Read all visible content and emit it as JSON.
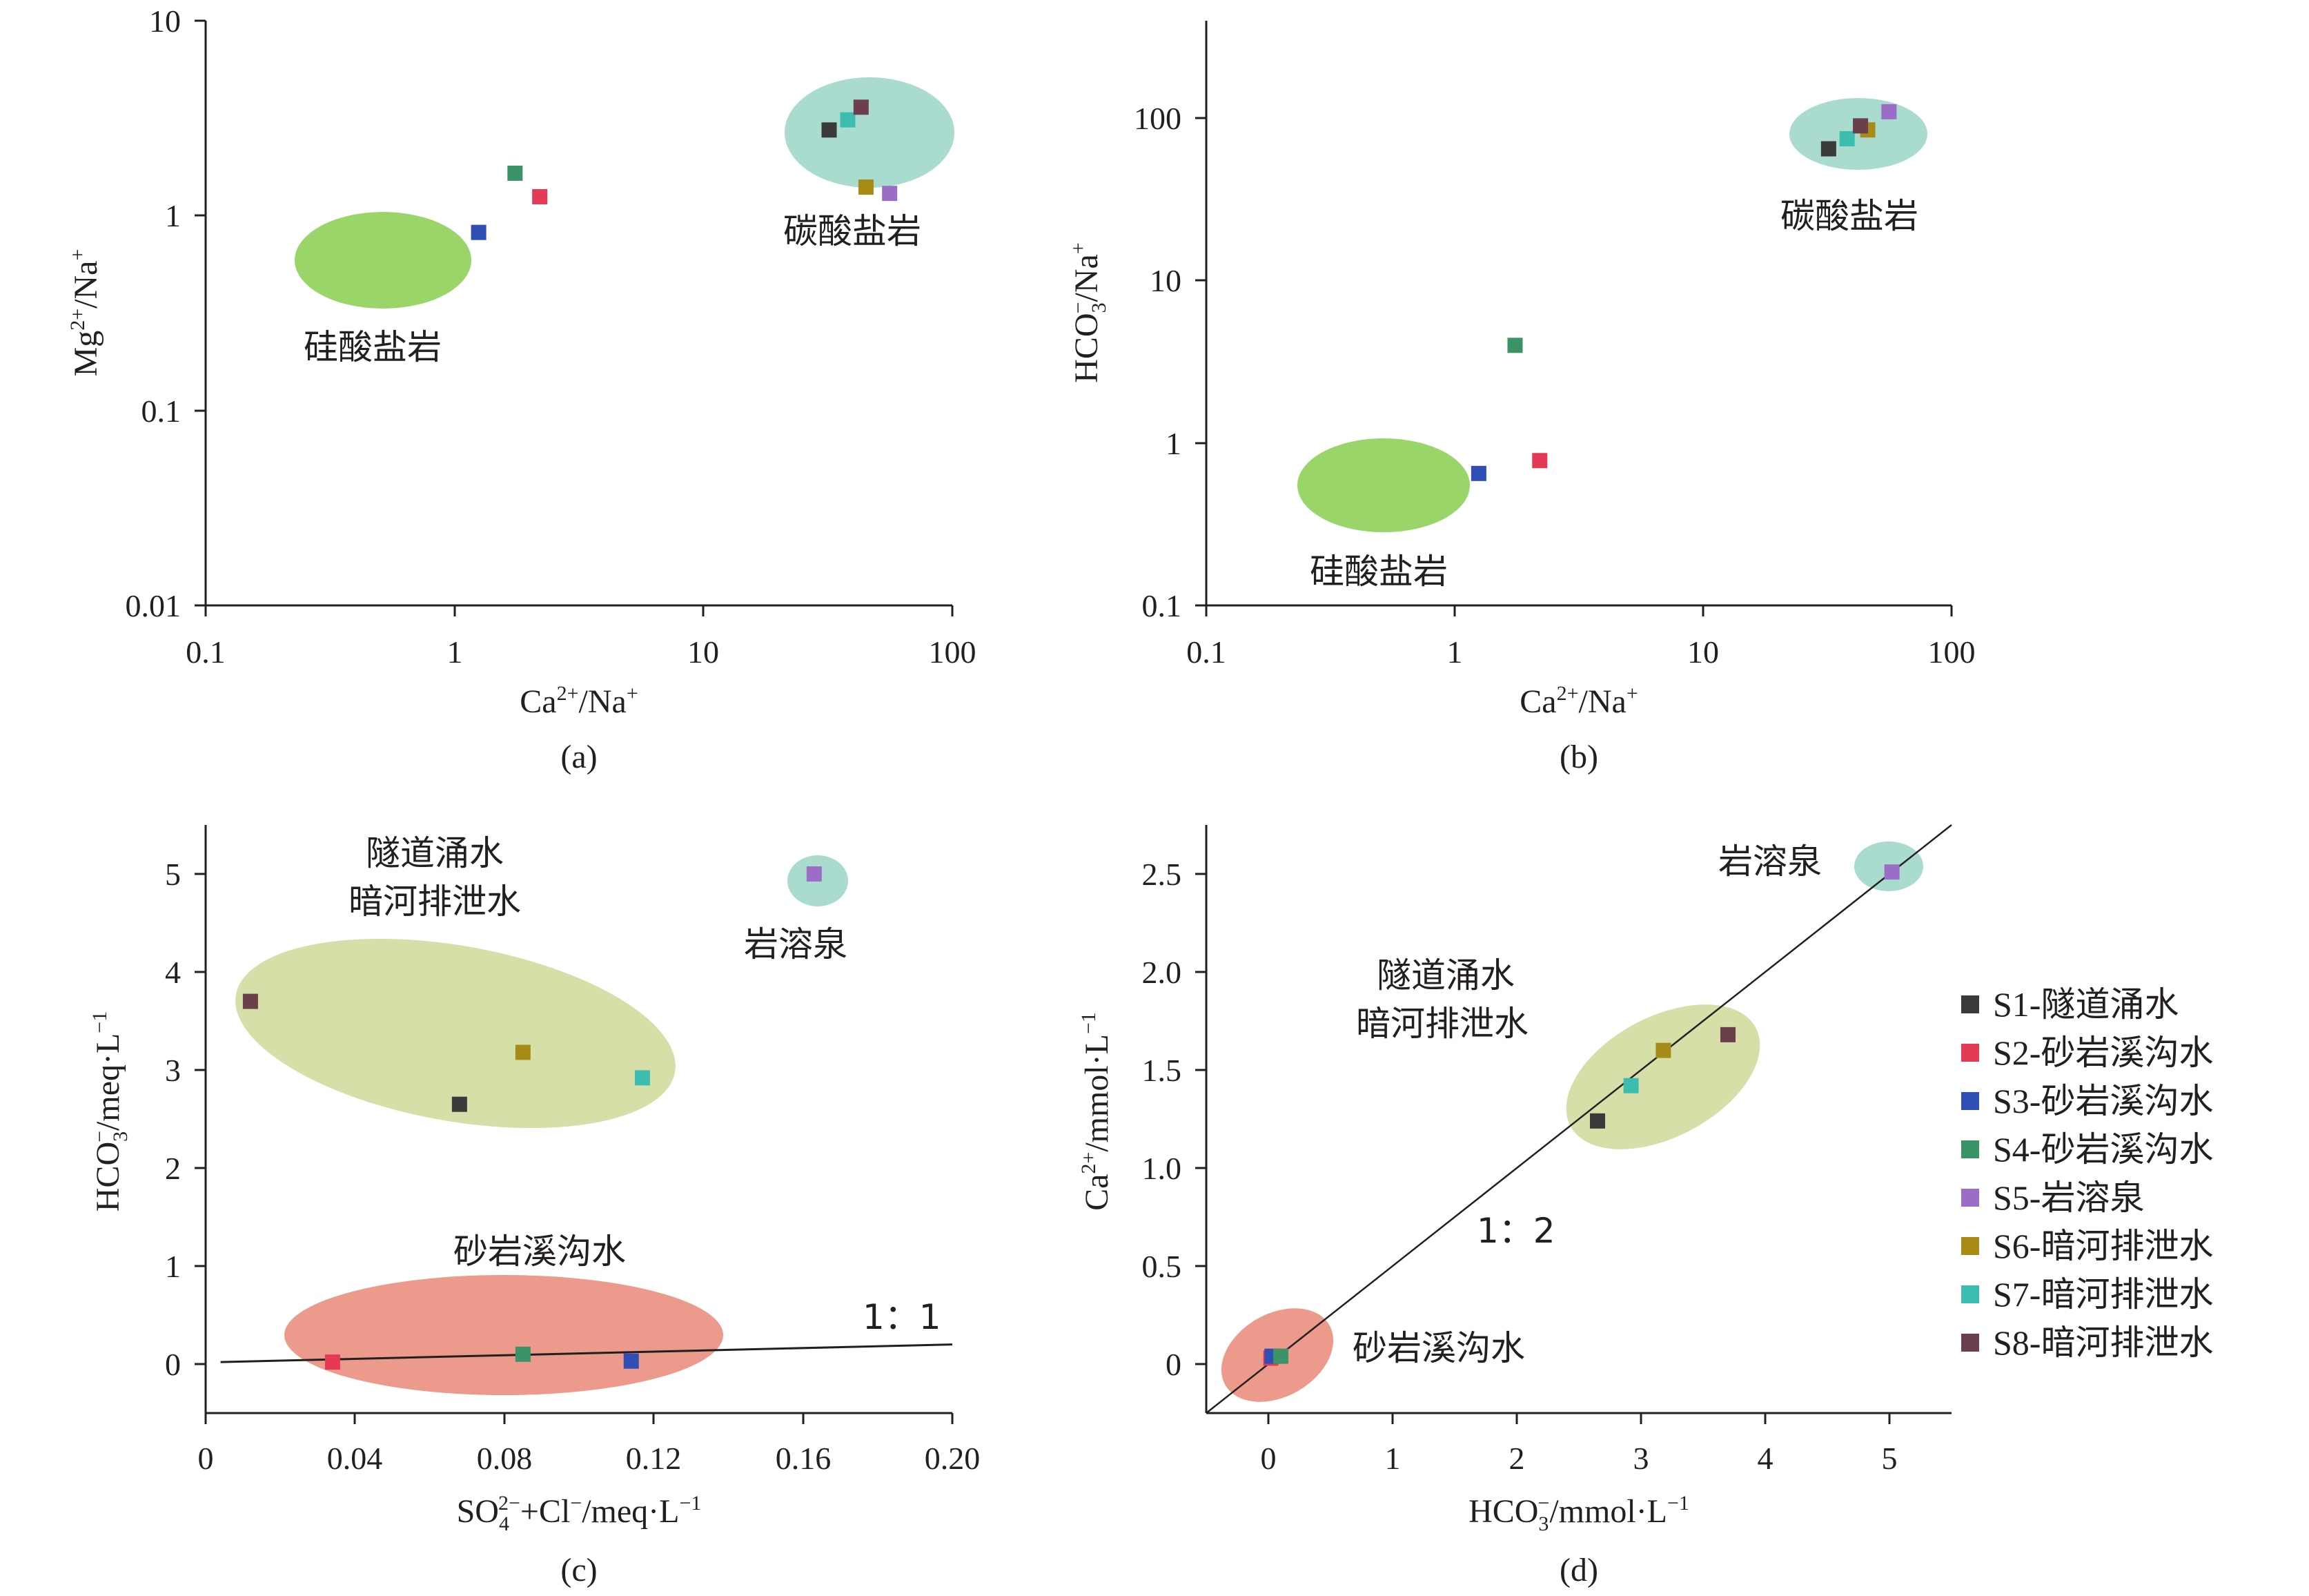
{
  "figure": {
    "series_colors": {
      "S1": "#3a3a3a",
      "S2": "#e33b56",
      "S3": "#2f4fb4",
      "S4": "#3a9468",
      "S5": "#9a6ec7",
      "S6": "#a88b16",
      "S7": "#3dbdb0",
      "S8": "#6b3f4b"
    },
    "region_colors": {
      "carbonate": "#a9dcce",
      "silicate": "#9ad56a",
      "tunnel_river": "#d6dfa8",
      "sandstone": "#ec9a8c",
      "karst": "#a9dcce"
    },
    "legend": [
      {
        "id": "S1",
        "label": "S1-隧道涌水"
      },
      {
        "id": "S2",
        "label": "S2-砂岩溪沟水"
      },
      {
        "id": "S3",
        "label": "S3-砂岩溪沟水"
      },
      {
        "id": "S4",
        "label": "S4-砂岩溪沟水"
      },
      {
        "id": "S5",
        "label": "S5-岩溶泉"
      },
      {
        "id": "S6",
        "label": "S6-暗河排泄水"
      },
      {
        "id": "S7",
        "label": "S7-暗河排泄水"
      },
      {
        "id": "S8",
        "label": "S8-暗河排泄水"
      }
    ]
  },
  "chart_data": [
    {
      "panel": "(a)",
      "type": "scatter",
      "x_scale": "log",
      "y_scale": "log",
      "xlim": [
        0.1,
        100
      ],
      "ylim": [
        0.01,
        10
      ],
      "x_ticks": [
        "0.1",
        "1",
        "10",
        "100"
      ],
      "y_ticks": [
        "0.01",
        "0.1",
        "1",
        "10"
      ],
      "xlabel": "Ca2+/Na+",
      "ylabel": "Mg2+/Na+",
      "regions": [
        {
          "label": "碳酸盐岩",
          "kind": "carbonate"
        },
        {
          "label": "硅酸盐岩",
          "kind": "silicate"
        }
      ],
      "points": [
        {
          "id": "S1",
          "x": 32,
          "y": 2.75
        },
        {
          "id": "S2",
          "x": 2.2,
          "y": 1.25
        },
        {
          "id": "S3",
          "x": 1.25,
          "y": 0.82
        },
        {
          "id": "S4",
          "x": 1.75,
          "y": 1.65
        },
        {
          "id": "S5",
          "x": 56,
          "y": 1.3
        },
        {
          "id": "S6",
          "x": 45,
          "y": 1.4
        },
        {
          "id": "S7",
          "x": 38,
          "y": 3.1
        },
        {
          "id": "S8",
          "x": 43,
          "y": 3.6
        }
      ]
    },
    {
      "panel": "(b)",
      "type": "scatter",
      "x_scale": "log",
      "y_scale": "log",
      "xlim": [
        0.1,
        100
      ],
      "ylim": [
        0.1,
        400
      ],
      "x_ticks": [
        "0.1",
        "1",
        "10",
        "100"
      ],
      "y_ticks": [
        "0.1",
        "1",
        "10",
        "100"
      ],
      "xlabel": "Ca2+/Na+",
      "ylabel": "HCO3-/Na+",
      "regions": [
        {
          "label": "碳酸盐岩",
          "kind": "carbonate"
        },
        {
          "label": "硅酸盐岩",
          "kind": "silicate"
        }
      ],
      "points": [
        {
          "id": "S1",
          "x": 32,
          "y": 65
        },
        {
          "id": "S2",
          "x": 2.2,
          "y": 0.78
        },
        {
          "id": "S3",
          "x": 1.25,
          "y": 0.65
        },
        {
          "id": "S4",
          "x": 1.75,
          "y": 4.0
        },
        {
          "id": "S5",
          "x": 56,
          "y": 110
        },
        {
          "id": "S6",
          "x": 46,
          "y": 85
        },
        {
          "id": "S7",
          "x": 38,
          "y": 75
        },
        {
          "id": "S8",
          "x": 43,
          "y": 90
        }
      ]
    },
    {
      "panel": "(c)",
      "type": "scatter",
      "xlim": [
        0,
        0.2
      ],
      "ylim": [
        -0.5,
        5.5
      ],
      "x_ticks": [
        "0",
        "0.04",
        "0.08",
        "0.12",
        "0.16",
        "0.20"
      ],
      "y_ticks": [
        "0",
        "1",
        "2",
        "3",
        "4",
        "5"
      ],
      "xlabel": "SO42-+Cl-/meq·L-1",
      "ylabel": "HCO3-/meq·L-1",
      "regions": [
        {
          "label": "岩溶泉",
          "kind": "karst"
        },
        {
          "label": "隧道涌水",
          "kind": "tunnel_river"
        },
        {
          "label": "暗河排泄水",
          "kind": "tunnel_river"
        },
        {
          "label": "砂岩溪沟水",
          "kind": "sandstone"
        }
      ],
      "line_label": "1：1",
      "line": [
        [
          0.004,
          0.02
        ],
        [
          0.2,
          0.2
        ]
      ],
      "points": [
        {
          "id": "S1",
          "x": 0.068,
          "y": 2.65
        },
        {
          "id": "S2",
          "x": 0.034,
          "y": 0.02
        },
        {
          "id": "S3",
          "x": 0.114,
          "y": 0.03
        },
        {
          "id": "S4",
          "x": 0.085,
          "y": 0.1
        },
        {
          "id": "S5",
          "x": 0.163,
          "y": 5.0
        },
        {
          "id": "S6",
          "x": 0.085,
          "y": 3.18
        },
        {
          "id": "S7",
          "x": 0.117,
          "y": 2.92
        },
        {
          "id": "S8",
          "x": 0.012,
          "y": 3.7
        }
      ]
    },
    {
      "panel": "(d)",
      "type": "scatter",
      "xlim": [
        -0.5,
        5.5
      ],
      "ylim": [
        -0.25,
        2.75
      ],
      "x_ticks": [
        "0",
        "1",
        "2",
        "3",
        "4",
        "5"
      ],
      "y_ticks": [
        "0",
        "0.5",
        "1.0",
        "1.5",
        "2.0",
        "2.5"
      ],
      "xlabel": "HCO3-/mmol·L-1",
      "ylabel": "Ca2+/mmol·L-1",
      "regions": [
        {
          "label": "岩溶泉",
          "kind": "karst"
        },
        {
          "label": "隧道涌水",
          "kind": "tunnel_river"
        },
        {
          "label": "暗河排泄水",
          "kind": "tunnel_river"
        },
        {
          "label": "砂岩溪沟水",
          "kind": "sandstone"
        }
      ],
      "line_label": "1：2",
      "line": [
        [
          -0.5,
          -0.25
        ],
        [
          5.5,
          2.75
        ]
      ],
      "points": [
        {
          "id": "S1",
          "x": 2.65,
          "y": 1.24
        },
        {
          "id": "S2",
          "x": 0.02,
          "y": 0.03
        },
        {
          "id": "S3",
          "x": 0.03,
          "y": 0.04
        },
        {
          "id": "S4",
          "x": 0.1,
          "y": 0.04
        },
        {
          "id": "S5",
          "x": 5.02,
          "y": 2.51
        },
        {
          "id": "S6",
          "x": 3.18,
          "y": 1.6
        },
        {
          "id": "S7",
          "x": 2.92,
          "y": 1.42
        },
        {
          "id": "S8",
          "x": 3.7,
          "y": 1.68
        }
      ]
    }
  ]
}
